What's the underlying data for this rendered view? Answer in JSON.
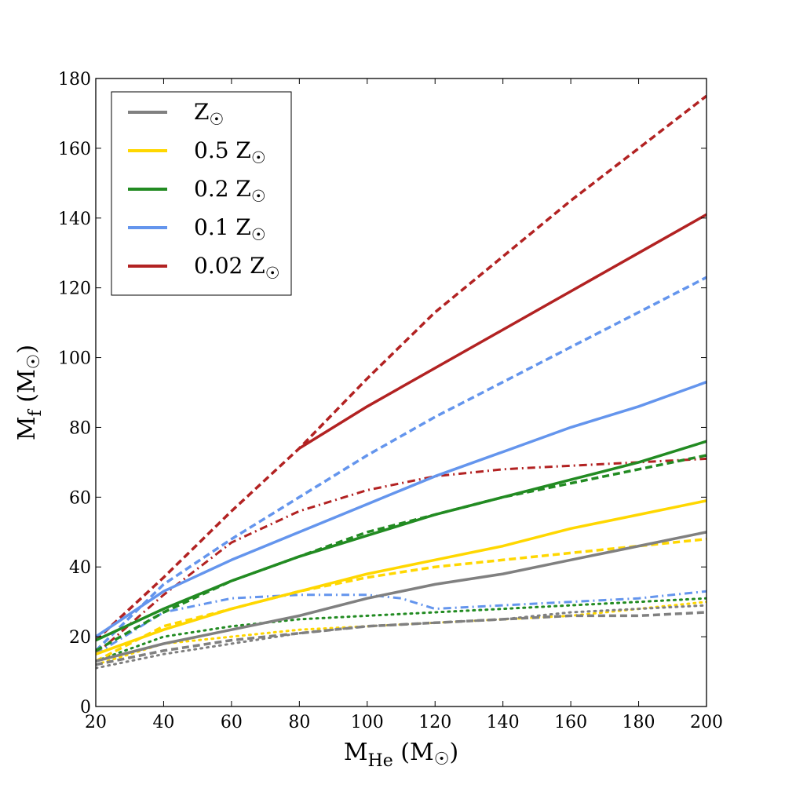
{
  "chart_data": {
    "type": "line",
    "x_label": {
      "main": "M",
      "sub": "He",
      "unit": " (M",
      "sym": "☉",
      "close": ")"
    },
    "y_label": {
      "main": "M",
      "sub": "f",
      "unit": " (M",
      "sym": "☉",
      "close": ")"
    },
    "xlim": [
      20,
      200
    ],
    "ylim": [
      0,
      180
    ],
    "x_ticks": [
      20,
      40,
      60,
      80,
      100,
      120,
      140,
      160,
      180,
      200
    ],
    "y_ticks": [
      0,
      20,
      40,
      60,
      80,
      100,
      120,
      140,
      160,
      180
    ],
    "grid": false,
    "legend_placement": "top-left",
    "legend": [
      {
        "prefix": "",
        "sym": "Z",
        "sun": "☉",
        "color": "#808080"
      },
      {
        "prefix": "0.5 ",
        "sym": "Z",
        "sun": "☉",
        "color": "#ffd700"
      },
      {
        "prefix": "0.2 ",
        "sym": "Z",
        "sun": "☉",
        "color": "#228b22"
      },
      {
        "prefix": "0.1 ",
        "sym": "Z",
        "sun": "☉",
        "color": "#6495ed"
      },
      {
        "prefix": "0.02 ",
        "sym": "Z",
        "sun": "☉",
        "color": "#b22222"
      }
    ],
    "series": [
      {
        "metallicity": "0.02",
        "color": "#b22222",
        "style": "dashed",
        "x": [
          20,
          40,
          60,
          80,
          100,
          120,
          140,
          160,
          180,
          200
        ],
        "y": [
          19,
          37,
          56,
          74,
          94,
          113,
          129,
          145,
          160,
          175
        ]
      },
      {
        "metallicity": "0.02",
        "color": "#b22222",
        "style": "solid",
        "x": [
          80,
          100,
          120,
          140,
          160,
          180,
          200
        ],
        "y": [
          74,
          86,
          97,
          108,
          119,
          130,
          141
        ]
      },
      {
        "metallicity": "0.02",
        "color": "#b22222",
        "style": "dashdot",
        "x": [
          20,
          40,
          60,
          80,
          100,
          120,
          140,
          160,
          180,
          200
        ],
        "y": [
          15,
          32,
          47,
          56,
          62,
          66,
          68,
          69,
          70,
          71
        ]
      },
      {
        "metallicity": "0.1",
        "color": "#6495ed",
        "style": "dashed",
        "x": [
          20,
          40,
          60,
          80,
          100,
          120,
          140,
          160,
          180,
          200
        ],
        "y": [
          16,
          35,
          48,
          60,
          72,
          83,
          93,
          103,
          113,
          123
        ]
      },
      {
        "metallicity": "0.1",
        "color": "#6495ed",
        "style": "solid",
        "x": [
          20,
          40,
          60,
          80,
          100,
          120,
          140,
          160,
          180,
          200
        ],
        "y": [
          20,
          33,
          42,
          50,
          58,
          66,
          73,
          80,
          86,
          93
        ]
      },
      {
        "metallicity": "0.1",
        "color": "#6495ed",
        "style": "dashdot",
        "x": [
          20,
          40,
          60,
          80,
          100,
          110,
          120,
          140,
          160,
          180,
          200
        ],
        "y": [
          15,
          27,
          31,
          32,
          32,
          31,
          28,
          29,
          30,
          31,
          33
        ]
      },
      {
        "metallicity": "0.2",
        "color": "#228b22",
        "style": "solid",
        "x": [
          20,
          40,
          60,
          80,
          100,
          120,
          140,
          160,
          180,
          200
        ],
        "y": [
          19,
          28,
          36,
          43,
          49,
          55,
          60,
          65,
          70,
          76
        ]
      },
      {
        "metallicity": "0.2",
        "color": "#228b22",
        "style": "dashed",
        "x": [
          20,
          40,
          60,
          80,
          100,
          120,
          140,
          160,
          180,
          200
        ],
        "y": [
          16,
          27,
          36,
          43,
          50,
          55,
          60,
          64,
          68,
          72
        ]
      },
      {
        "metallicity": "0.2",
        "color": "#228b22",
        "style": "dotted",
        "x": [
          20,
          40,
          60,
          80,
          100,
          120,
          140,
          160,
          180,
          200
        ],
        "y": [
          13,
          20,
          23,
          25,
          26,
          27,
          28,
          29,
          30,
          31
        ]
      },
      {
        "metallicity": "0.5",
        "color": "#ffd700",
        "style": "solid",
        "x": [
          20,
          40,
          60,
          80,
          100,
          120,
          140,
          160,
          180,
          200
        ],
        "y": [
          15,
          22,
          28,
          33,
          38,
          42,
          46,
          51,
          55,
          59
        ]
      },
      {
        "metallicity": "0.5",
        "color": "#ffd700",
        "style": "dashed",
        "x": [
          20,
          40,
          60,
          80,
          100,
          120,
          140,
          160,
          180,
          200
        ],
        "y": [
          13,
          23,
          28,
          33,
          37,
          40,
          42,
          44,
          46,
          48
        ]
      },
      {
        "metallicity": "0.5",
        "color": "#ffd700",
        "style": "dotted",
        "x": [
          20,
          40,
          60,
          80,
          100,
          120,
          140,
          160,
          180,
          200
        ],
        "y": [
          12,
          18,
          20,
          22,
          23,
          24,
          25,
          26,
          28,
          30
        ]
      },
      {
        "metallicity": "1",
        "color": "#808080",
        "style": "solid",
        "x": [
          20,
          40,
          60,
          80,
          100,
          120,
          140,
          160,
          180,
          200
        ],
        "y": [
          13,
          18,
          22,
          26,
          31,
          35,
          38,
          42,
          46,
          50
        ]
      },
      {
        "metallicity": "1",
        "color": "#808080",
        "style": "dashed",
        "x": [
          20,
          40,
          60,
          80,
          100,
          120,
          140,
          160,
          180,
          200
        ],
        "y": [
          12,
          16,
          19,
          21,
          23,
          24,
          25,
          26,
          26,
          27
        ]
      },
      {
        "metallicity": "1",
        "color": "#808080",
        "style": "dotted",
        "x": [
          20,
          40,
          60,
          80,
          100,
          120,
          140,
          160,
          180,
          200
        ],
        "y": [
          11,
          15,
          18,
          21,
          23,
          24,
          25,
          27,
          28,
          29
        ]
      }
    ]
  }
}
